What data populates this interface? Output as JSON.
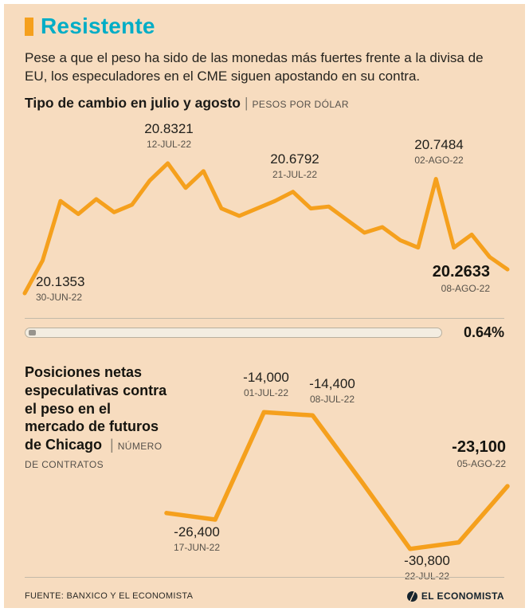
{
  "page": {
    "title": "Resistente",
    "intro": "Pese a que el peso ha sido de las monedas más fuertes frente a la divisa de EU, los especuladores en el CME siguen apostando en su contra.",
    "footer_source": "FUENTE: BANXICO Y EL ECONOMISTA",
    "brand": "EL ECONOMISTA"
  },
  "colors": {
    "background": "#f7dcbf",
    "accent_cyan": "#00adc6",
    "line_orange": "#f5a01d",
    "text_dark": "#15140f",
    "date_gray": "#57524a"
  },
  "chart1": {
    "title": "Tipo de cambio en julio y agosto",
    "separator": "|",
    "unit_label": "PESOS POR DÓLAR",
    "change_pct": "0.64%",
    "annotations": [
      {
        "value": "20.1353",
        "date": "30-JUN-22"
      },
      {
        "value": "20.8321",
        "date": "12-JUL-22"
      },
      {
        "value": "20.6792",
        "date": "21-JUL-22"
      },
      {
        "value": "20.7484",
        "date": "02-AGO-22"
      },
      {
        "value": "20.2633",
        "date": "08-AGO-22"
      }
    ]
  },
  "chart2": {
    "title": "Posiciones netas especulativas contra el peso en el mercado de futuros de Chicago",
    "separator": "|",
    "unit_label": "NÚMERO DE CONTRATOS",
    "annotations": [
      {
        "value": "-26,400",
        "date": "17-JUN-22"
      },
      {
        "value": "-14,000",
        "date": "01-JUL-22"
      },
      {
        "value": "-14,400",
        "date": "08-JUL-22"
      },
      {
        "value": "-30,800",
        "date": "22-JUL-22"
      },
      {
        "value": "-23,100",
        "date": "05-AGO-22"
      }
    ]
  },
  "chart_data": [
    {
      "type": "line",
      "title": "Tipo de cambio en julio y agosto",
      "xlabel": "",
      "ylabel": "Pesos por dólar",
      "grid": false,
      "legend": "none",
      "ylim": [
        20.08,
        20.87
      ],
      "x": [
        "30-JUN-22",
        "01-JUL-22",
        "04-JUL-22",
        "05-JUL-22",
        "06-JUL-22",
        "07-JUL-22",
        "08-JUL-22",
        "11-JUL-22",
        "12-JUL-22",
        "13-JUL-22",
        "14-JUL-22",
        "15-JUL-22",
        "18-JUL-22",
        "19-JUL-22",
        "20-JUL-22",
        "21-JUL-22",
        "22-JUL-22",
        "25-JUL-22",
        "26-JUL-22",
        "27-JUL-22",
        "28-JUL-22",
        "29-JUL-22",
        "01-AGO-22",
        "02-AGO-22",
        "03-AGO-22",
        "04-AGO-22",
        "05-AGO-22",
        "08-AGO-22"
      ],
      "values": [
        20.1353,
        20.31,
        20.63,
        20.56,
        20.64,
        20.57,
        20.61,
        20.74,
        20.8321,
        20.7,
        20.79,
        20.59,
        20.55,
        20.59,
        20.63,
        20.6792,
        20.59,
        20.6,
        20.53,
        20.46,
        20.49,
        20.42,
        20.38,
        20.7484,
        20.38,
        20.45,
        20.33,
        20.2633
      ],
      "labeled_points": [
        {
          "x": "30-JUN-22",
          "y": 20.1353
        },
        {
          "x": "12-JUL-22",
          "y": 20.8321
        },
        {
          "x": "21-JUL-22",
          "y": 20.6792
        },
        {
          "x": "02-AGO-22",
          "y": 20.7484
        },
        {
          "x": "08-AGO-22",
          "y": 20.2633
        }
      ],
      "footnote_value": "0.64%"
    },
    {
      "type": "line",
      "title": "Posiciones netas especulativas contra el peso en el mercado de futuros de Chicago",
      "xlabel": "",
      "ylabel": "Número de contratos",
      "grid": false,
      "legend": "none",
      "ylim": [
        -31800,
        -13200
      ],
      "x": [
        "17-JUN-22",
        "24-JUN-22",
        "01-JUL-22",
        "08-JUL-22",
        "15-JUL-22",
        "22-JUL-22",
        "29-JUL-22",
        "05-AGO-22"
      ],
      "values": [
        -26400,
        -27200,
        -14000,
        -14400,
        -22500,
        -30800,
        -30000,
        -23100
      ],
      "labeled_points": [
        {
          "x": "17-JUN-22",
          "y": -26400
        },
        {
          "x": "01-JUL-22",
          "y": -14000
        },
        {
          "x": "08-JUL-22",
          "y": -14400
        },
        {
          "x": "22-JUL-22",
          "y": -30800
        },
        {
          "x": "05-AGO-22",
          "y": -23100
        }
      ]
    }
  ]
}
